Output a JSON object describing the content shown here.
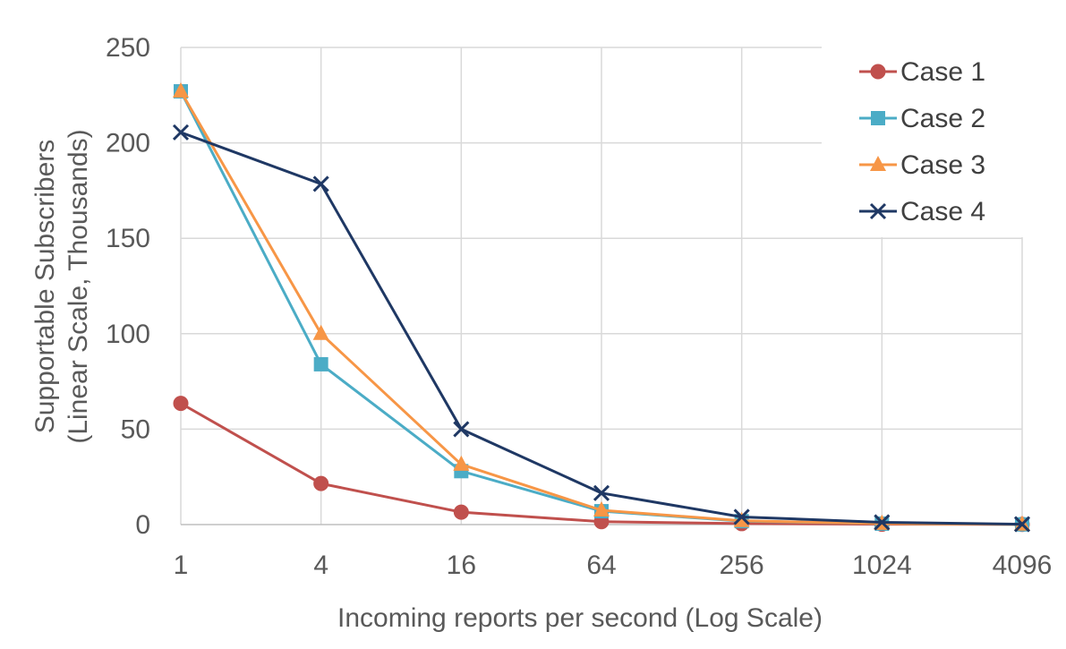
{
  "chart_data": {
    "type": "line",
    "title": "",
    "xlabel": "Incoming reports per second (Log Scale)",
    "ylabel": "Supportable Subscribers",
    "ylabel_line2": "(Linear Scale, Thousands)",
    "x": [
      1,
      4,
      16,
      64,
      256,
      1024,
      4096
    ],
    "x_tick_labels": [
      "1",
      "4",
      "16",
      "64",
      "256",
      "1024",
      "4096"
    ],
    "x_scale": "log4",
    "ylim": [
      0,
      250
    ],
    "y_ticks": [
      0,
      50,
      100,
      150,
      200,
      250
    ],
    "grid": true,
    "legend_position": "top-right",
    "series": [
      {
        "name": "Case 1",
        "color": "#c0504d",
        "marker": "circle",
        "values": [
          63.5,
          21.5,
          6.5,
          1.5,
          0.5,
          0.2,
          0.1
        ]
      },
      {
        "name": "Case 2",
        "color": "#4bacc6",
        "marker": "square",
        "values": [
          227,
          84,
          28,
          7,
          1.8,
          0.5,
          0.1
        ]
      },
      {
        "name": "Case 3",
        "color": "#f79646",
        "marker": "triangle",
        "values": [
          227,
          100,
          31.5,
          7.5,
          2,
          0.5,
          0.1
        ]
      },
      {
        "name": "Case 4",
        "color": "#1f3864",
        "marker": "x",
        "values": [
          205.5,
          178.5,
          50,
          16.5,
          4,
          1.2,
          0.2
        ]
      }
    ]
  }
}
